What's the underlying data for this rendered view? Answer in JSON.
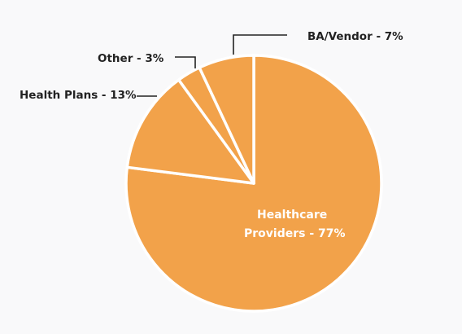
{
  "chart_data": {
    "type": "pie",
    "slices": [
      {
        "label": "Healthcare Providers - 77%",
        "label_lines": [
          "Healthcare",
          "Providers - 77%"
        ],
        "value": 77
      },
      {
        "label": "Health Plans - 13%",
        "value": 13
      },
      {
        "label": "Other - 3%",
        "value": 3
      },
      {
        "label": "BA/Vendor - 7%",
        "value": 7
      }
    ],
    "colors": {
      "slice": "#f2a24a",
      "separator": "#ffffff",
      "leader": "#222222",
      "background": "#f9f9fa"
    },
    "legend": "none",
    "grid": false
  }
}
